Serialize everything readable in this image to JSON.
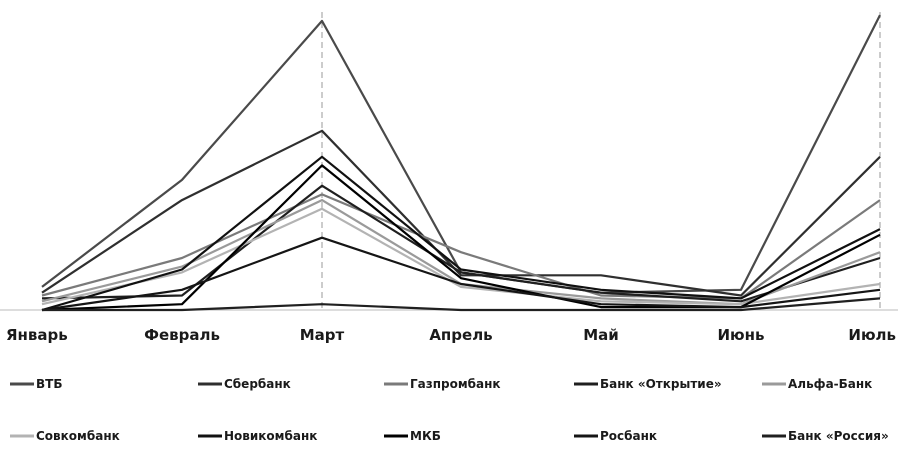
{
  "chart_data": {
    "type": "line",
    "categories": [
      "Январь",
      "Февраль",
      "Март",
      "Апрель",
      "Май",
      "Июнь",
      "Июль"
    ],
    "ylim": [
      0,
      100
    ],
    "grid": false,
    "legend_position": "bottom",
    "vlines_at": [
      "Март",
      "Июль"
    ],
    "series": [
      {
        "name": "ВТБ",
        "color": "#4a4a4a",
        "values": [
          8,
          45,
          100,
          13,
          6,
          7,
          102
        ]
      },
      {
        "name": "Сбербанк",
        "color": "#2f2f2f",
        "values": [
          6,
          38,
          62,
          12,
          12,
          5,
          53
        ]
      },
      {
        "name": "Газпромбанк",
        "color": "#7a7a7a",
        "values": [
          5,
          18,
          40,
          20,
          5,
          4,
          38
        ]
      },
      {
        "name": "Банк «Открытие»",
        "color": "#1f1f1f",
        "values": [
          4,
          5,
          43,
          13,
          6,
          3,
          18
        ]
      },
      {
        "name": "Альфа-Банк",
        "color": "#9a9a9a",
        "values": [
          3,
          15,
          38,
          9,
          4,
          2,
          20
        ]
      },
      {
        "name": "Совкомбанк",
        "color": "#b3b3b3",
        "values": [
          2,
          13,
          35,
          8,
          3,
          2,
          9
        ]
      },
      {
        "name": "Новикомбанк",
        "color": "#111111",
        "values": [
          0,
          14,
          53,
          14,
          7,
          4,
          28
        ]
      },
      {
        "name": "МКБ",
        "color": "#000000",
        "values": [
          0,
          2,
          50,
          11,
          1,
          1,
          26
        ]
      },
      {
        "name": "Росбанк",
        "color": "#151515",
        "values": [
          0,
          7,
          25,
          9,
          2,
          1,
          7
        ]
      },
      {
        "name": "Банк «Россия»",
        "color": "#202020",
        "values": [
          0,
          0,
          2,
          0,
          0,
          0,
          4
        ]
      }
    ]
  }
}
